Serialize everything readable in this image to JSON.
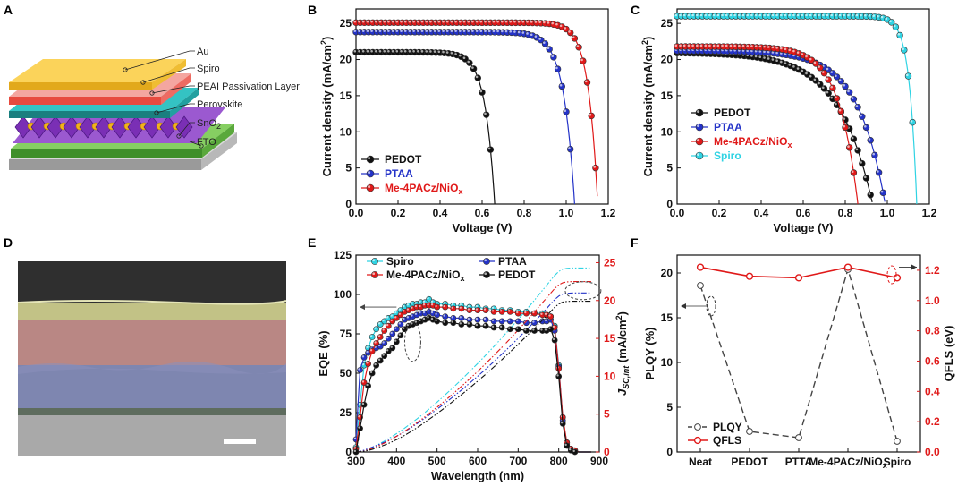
{
  "panels": {
    "A": "A",
    "B": "B",
    "C": "C",
    "D": "D",
    "E": "E",
    "F": "F"
  },
  "panel_a": {
    "layers": [
      {
        "name": "Au",
        "color": "#f7c948"
      },
      {
        "name": "Spiro",
        "color": "#f4a6a0"
      },
      {
        "name": "PEAI Passivation Layer",
        "color": "#26b8b8"
      },
      {
        "name": "Perovskite",
        "color": "#8a3fc2"
      },
      {
        "name": "SnO",
        "sub": "2",
        "color": "#6cbf4a"
      },
      {
        "name": "FTO",
        "color": "#cfcfcf"
      }
    ]
  },
  "panel_d": {
    "description_colors": {
      "top": "#c9c98a",
      "mid": "#c98f8f",
      "low": "#8a8fb8"
    }
  },
  "chart_data": [
    {
      "id": "B",
      "type": "line",
      "xlabel": "Voltage (V)",
      "ylabel": "Current density (mA/cm²)",
      "ylabel_main": "Current density (mA/cm",
      "ylabel_sup": "2",
      "ylabel_end": ")",
      "xlim": [
        0,
        1.2
      ],
      "ylim": [
        0,
        27
      ],
      "xticks": [
        "0.0",
        "0.2",
        "0.4",
        "0.6",
        "0.8",
        "1.0",
        "1.2"
      ],
      "yticks": [
        "0",
        "5",
        "10",
        "15",
        "20",
        "25"
      ],
      "series": [
        {
          "name": "PEDOT",
          "color": "#111111",
          "jsc": 21.0,
          "voc": 0.66,
          "knee": 0.045
        },
        {
          "name": "PTAA",
          "color": "#2433c8",
          "jsc": 23.8,
          "voc": 1.04,
          "knee": 0.052
        },
        {
          "name": "Me-4PACz/NiO",
          "sub": "x",
          "color": "#e01919",
          "jsc": 25.1,
          "voc": 1.15,
          "knee": 0.045
        }
      ]
    },
    {
      "id": "C",
      "type": "line",
      "xlabel": "Voltage (V)",
      "ylabel": "Current density (mA/cm²)",
      "ylabel_main": "Current density (mA/cm",
      "ylabel_sup": "2",
      "ylabel_end": ")",
      "xlim": [
        0,
        1.2
      ],
      "ylim": [
        0,
        27
      ],
      "xticks": [
        "0.0",
        "0.2",
        "0.4",
        "0.6",
        "0.8",
        "1.0",
        "1.2"
      ],
      "yticks": [
        "0",
        "5",
        "10",
        "15",
        "20",
        "25"
      ],
      "series": [
        {
          "name": "PEDOT",
          "color": "#111111",
          "jsc": 20.9,
          "voc": 0.93,
          "knee": 0.16
        },
        {
          "name": "PTAA",
          "color": "#2433c8",
          "jsc": 21.2,
          "voc": 0.99,
          "knee": 0.13
        },
        {
          "name": "Me-4PACz/NiO",
          "sub": "x",
          "color": "#e01919",
          "jsc": 21.8,
          "voc": 0.86,
          "knee": 0.09
        },
        {
          "name": "Spiro",
          "color": "#2fd3e3",
          "jsc": 26.0,
          "voc": 1.14,
          "knee": 0.035
        }
      ]
    },
    {
      "id": "E",
      "type": "line",
      "xlabel": "Wavelength (nm)",
      "ylabel": "EQE (%)",
      "y2label": "J_SC,int (mA/cm²)",
      "y2label_j": "J",
      "y2label_sub": "SC,int",
      "y2label_rest": " (mA/cm",
      "y2label_sup": "2",
      "y2label_end": ")",
      "xlim": [
        300,
        900
      ],
      "ylim": [
        0,
        125
      ],
      "y2lim": [
        0,
        26
      ],
      "xticks": [
        "300",
        "400",
        "500",
        "600",
        "700",
        "800",
        "900"
      ],
      "yticks": [
        "0",
        "25",
        "50",
        "75",
        "100",
        "125"
      ],
      "y2ticks": [
        "0",
        "5",
        "10",
        "15",
        "20",
        "25"
      ],
      "x_points": [
        300,
        310,
        320,
        330,
        340,
        350,
        360,
        370,
        380,
        390,
        400,
        410,
        420,
        430,
        440,
        450,
        460,
        470,
        480,
        490,
        500,
        520,
        540,
        560,
        580,
        600,
        620,
        640,
        660,
        680,
        700,
        720,
        740,
        760,
        770,
        780,
        790,
        800,
        810,
        820,
        830,
        840,
        850,
        860,
        870,
        880
      ],
      "series": [
        {
          "name": "Spiro",
          "color": "#2fd3e3",
          "jsc_int": 24.3,
          "values": [
            3,
            30,
            55,
            66,
            73,
            78,
            81,
            83,
            85,
            86,
            88,
            90,
            92,
            93,
            94,
            94,
            95,
            95,
            97,
            95,
            94,
            94,
            93,
            93,
            92,
            92,
            91,
            91,
            90,
            90,
            89,
            89,
            88,
            88,
            87,
            86,
            80,
            55,
            22,
            6,
            2,
            1,
            0,
            0,
            0,
            0
          ]
        },
        {
          "name": "PTAA",
          "color": "#2433c8",
          "jsc_int": 21.0,
          "values": [
            8,
            52,
            60,
            63,
            65,
            66,
            67,
            69,
            72,
            75,
            78,
            81,
            84,
            85,
            86,
            87,
            88,
            88,
            89,
            88,
            87,
            86,
            85,
            85,
            84,
            84,
            84,
            83,
            83,
            83,
            83,
            82,
            82,
            83,
            83,
            84,
            77,
            54,
            20,
            5,
            2,
            1,
            0,
            0,
            0,
            0
          ]
        },
        {
          "name": "Me-4PACz/NiO",
          "sub": "x",
          "color": "#e01919",
          "jsc_int": 22.5,
          "values": [
            2,
            22,
            44,
            56,
            64,
            69,
            73,
            77,
            80,
            83,
            85,
            87,
            89,
            90,
            91,
            92,
            92,
            93,
            93,
            93,
            92,
            92,
            91,
            91,
            90,
            90,
            90,
            89,
            89,
            89,
            88,
            88,
            88,
            87,
            87,
            86,
            79,
            53,
            22,
            6,
            2,
            1,
            0,
            0,
            0,
            0
          ]
        },
        {
          "name": "PEDOT",
          "color": "#111111",
          "jsc_int": 19.9,
          "values": [
            0,
            15,
            30,
            42,
            50,
            55,
            58,
            61,
            64,
            66,
            70,
            74,
            78,
            80,
            81,
            82,
            83,
            84,
            85,
            84,
            83,
            82,
            82,
            81,
            81,
            80,
            80,
            79,
            79,
            78,
            78,
            77,
            77,
            77,
            77,
            78,
            71,
            48,
            18,
            4,
            1,
            0,
            0,
            0,
            0,
            0
          ]
        }
      ]
    },
    {
      "id": "F",
      "type": "line",
      "ylabel": "PLQY (%)",
      "y2label": "QFLS (eV)",
      "categories": [
        "Neat",
        "PEDOT",
        "PTTA",
        "Me-4PACz/NiO",
        "Spiro"
      ],
      "category_subs": [
        "",
        "",
        "",
        "x",
        ""
      ],
      "ylim": [
        0,
        22
      ],
      "y2lim": [
        0,
        1.3
      ],
      "yticks": [
        "0",
        "5",
        "10",
        "15",
        "20"
      ],
      "y2ticks": [
        "0.0",
        "0.2",
        "0.4",
        "0.6",
        "0.8",
        "1.0",
        "1.2"
      ],
      "series": [
        {
          "name": "PLQY",
          "color": "#333333",
          "values": [
            18.6,
            2.3,
            1.6,
            20.4,
            1.2
          ]
        },
        {
          "name": "QFLS",
          "color": "#e01919",
          "values": [
            1.22,
            1.16,
            1.15,
            1.22,
            1.15
          ]
        }
      ]
    }
  ]
}
